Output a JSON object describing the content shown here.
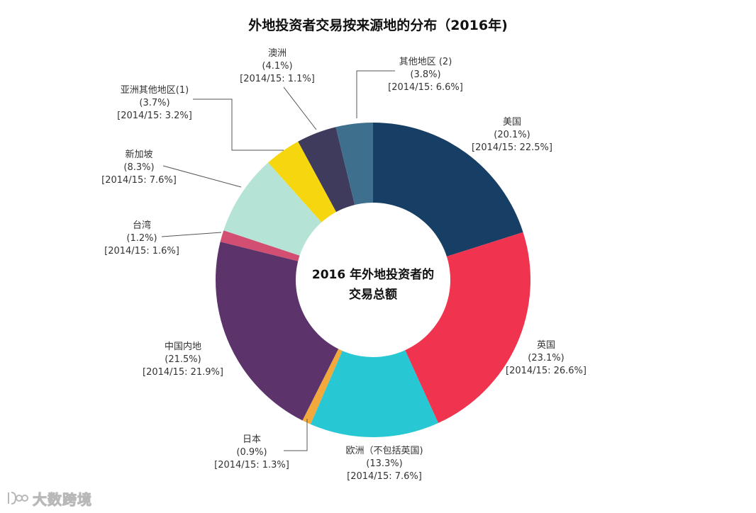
{
  "chart_data": {
    "type": "pie",
    "title": "外地投资者交易按来源地的分布（2016年)",
    "center_label": [
      "2016 年外地投资者的",
      "交易总额"
    ],
    "slices": [
      {
        "name": "美国",
        "value": 20.1,
        "value_label": "(20.1%)",
        "prior_label": "[2014/15: 22.5%]",
        "color": "#173f66"
      },
      {
        "name": "英国",
        "value": 23.1,
        "value_label": "(23.1%)",
        "prior_label": "[2014/15: 26.6%]",
        "color": "#f0344f"
      },
      {
        "name": "欧洲（不包括英国)",
        "value": 13.3,
        "value_label": "(13.3%)",
        "prior_label": "[2014/15: 7.6%]",
        "color": "#27c8d4"
      },
      {
        "name": "日本",
        "value": 0.9,
        "value_label": "(0.9%)",
        "prior_label": "[2014/15: 1.3%]",
        "color": "#f2a93b"
      },
      {
        "name": "中国内地",
        "value": 21.5,
        "value_label": "(21.5%)",
        "prior_label": "[2014/15: 21.9%]",
        "color": "#5c336b"
      },
      {
        "name": "台湾",
        "value": 1.2,
        "value_label": "(1.2%)",
        "prior_label": "[2014/15: 1.6%]",
        "color": "#d24f72"
      },
      {
        "name": "新加坡",
        "value": 8.3,
        "value_label": "(8.3%)",
        "prior_label": "[2014/15: 7.6%]",
        "color": "#b5e4d6"
      },
      {
        "name": "亚洲其他地区(1)",
        "value": 3.7,
        "value_label": "(3.7%)",
        "prior_label": "[2014/15: 3.2%]",
        "color": "#f6d60f"
      },
      {
        "name": "澳洲",
        "value": 4.1,
        "value_label": "(4.1%)",
        "prior_label": "[2014/15: 1.1%]",
        "color": "#3e3b5d"
      },
      {
        "name": "其他地区 (2)",
        "value": 3.8,
        "value_label": "(3.8%)",
        "prior_label": "[2014/15: 6.6%]",
        "color": "#3e6f8d"
      }
    ]
  },
  "watermark": {
    "text": "大数跨境",
    "icon": "brand-logo-icon"
  }
}
